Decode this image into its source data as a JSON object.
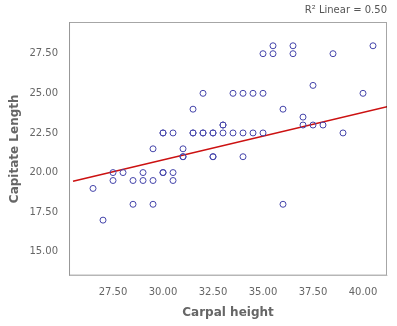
{
  "chart_data": {
    "type": "scatter",
    "annotation": "R² Linear = 0.50",
    "x_label": "Carpal height",
    "y_label": "Capitate Length",
    "series": [
      {
        "type": "scatter",
        "color": "#4444aa",
        "marker": "circle",
        "x": [
          26.5,
          27.0,
          27.5,
          27.5,
          28.0,
          28.5,
          28.5,
          29.0,
          29.0,
          29.5,
          29.5,
          29.5,
          30.0,
          30.0,
          30.0,
          30.0,
          30.5,
          30.5,
          30.5,
          31.0,
          31.0,
          31.0,
          31.5,
          31.5,
          31.5,
          32.0,
          32.0,
          32.0,
          32.5,
          32.5,
          32.5,
          32.5,
          33.0,
          33.0,
          33.0,
          33.5,
          33.5,
          34.0,
          34.0,
          34.0,
          34.5,
          34.5,
          35.0,
          35.0,
          35.0,
          35.5,
          35.5,
          36.0,
          36.0,
          36.5,
          36.5,
          37.0,
          37.0,
          37.5,
          37.5,
          38.0,
          38.5,
          39.0,
          40.0,
          40.5
        ],
        "values": [
          19.0,
          17.0,
          20.0,
          19.5,
          20.0,
          19.5,
          18.0,
          20.0,
          19.5,
          18.0,
          19.5,
          21.5,
          20.0,
          22.5,
          22.5,
          20.0,
          19.5,
          22.5,
          20.0,
          21.5,
          21.0,
          21.0,
          22.5,
          24.0,
          22.5,
          22.5,
          22.5,
          25.0,
          22.5,
          22.5,
          21.0,
          21.0,
          23.0,
          23.0,
          22.5,
          22.5,
          25.0,
          22.5,
          25.0,
          21.0,
          22.5,
          25.0,
          25.0,
          27.5,
          22.5,
          28.0,
          27.5,
          24.0,
          18.0,
          28.0,
          27.5,
          23.5,
          23.0,
          25.5,
          23.0,
          23.0,
          27.5,
          22.5,
          25.0,
          28.0
        ]
      },
      {
        "type": "line",
        "color": "#cc1111",
        "line_style": "solid",
        "x": [
          25.5,
          41.2
        ],
        "values": [
          19.45,
          24.16
        ]
      }
    ],
    "xlim": [
      25.3,
      41.2
    ],
    "ylim": [
      13.5,
      29.5
    ],
    "xticks": [
      {
        "value": 27.5,
        "label": "27.50"
      },
      {
        "value": 30.0,
        "label": "30.00"
      },
      {
        "value": 32.5,
        "label": "32.50"
      },
      {
        "value": 35.0,
        "label": "35.00"
      },
      {
        "value": 37.5,
        "label": "37.50"
      },
      {
        "value": 40.0,
        "label": "40.00"
      }
    ],
    "yticks": [
      {
        "value": 15.0,
        "label": "15.00"
      },
      {
        "value": 17.5,
        "label": "17.50"
      },
      {
        "value": 20.0,
        "label": "20.00"
      },
      {
        "value": 22.5,
        "label": "22.50"
      },
      {
        "value": 25.0,
        "label": "25.00"
      },
      {
        "value": 27.5,
        "label": "27.50"
      }
    ],
    "grid": false
  }
}
